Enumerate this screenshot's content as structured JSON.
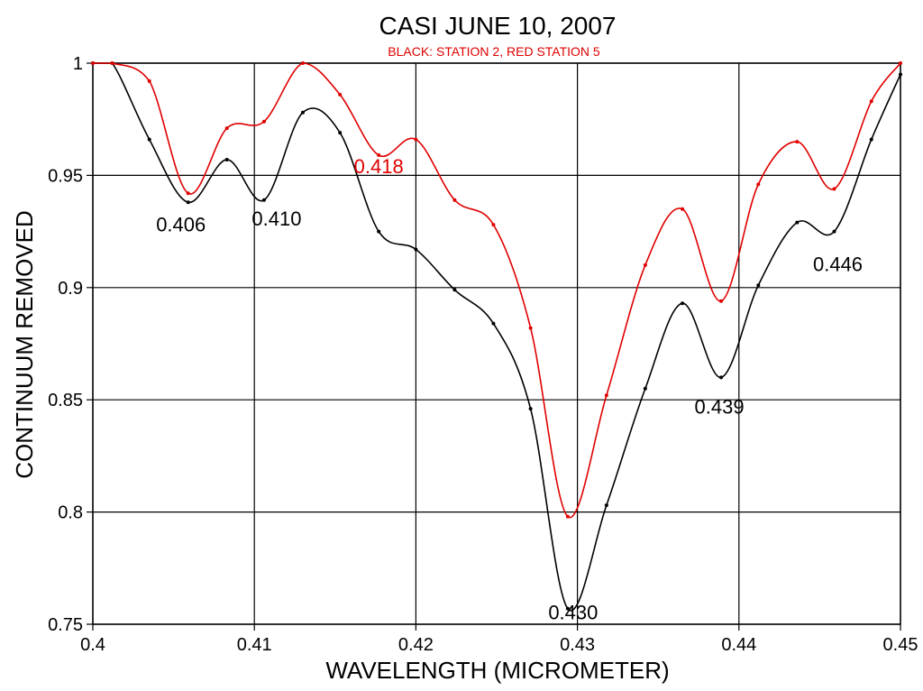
{
  "chart_data": {
    "type": "line",
    "title": "CASI JUNE 10, 2007",
    "subtitle": "BLACK: STATION 2, RED STATION 5",
    "xlabel": "WAVELENGTH (MICROMETER)",
    "ylabel": "CONTINUUM REMOVED",
    "xlim": [
      0.4,
      0.45
    ],
    "ylim": [
      0.75,
      1.0
    ],
    "xticks": [
      0.4,
      0.41,
      0.42,
      0.43,
      0.44,
      0.45
    ],
    "xtick_labels": [
      "0.4",
      "0.41",
      "0.42",
      "0.43",
      "0.44",
      "0.45"
    ],
    "yticks": [
      0.75,
      0.8,
      0.85,
      0.9,
      0.95,
      1.0
    ],
    "ytick_labels": [
      "0.75",
      "0.8",
      "0.85",
      "0.9",
      "0.95",
      "1"
    ],
    "grid": true,
    "series": [
      {
        "color": "#000000",
        "x": [
          0.4,
          0.4012,
          0.4035,
          0.4059,
          0.4083,
          0.4106,
          0.413,
          0.4153,
          0.4177,
          0.42,
          0.4224,
          0.4248,
          0.4271,
          0.4294,
          0.4318,
          0.4342,
          0.4365,
          0.4389,
          0.4412,
          0.4436,
          0.4459,
          0.4482,
          0.45
        ],
        "y": [
          1.0,
          1.0,
          0.966,
          0.938,
          0.957,
          0.939,
          0.978,
          0.969,
          0.925,
          0.917,
          0.899,
          0.884,
          0.846,
          0.757,
          0.803,
          0.855,
          0.893,
          0.86,
          0.901,
          0.929,
          0.925,
          0.966,
          0.995
        ]
      },
      {
        "color": "#e00000",
        "x": [
          0.4,
          0.4012,
          0.4035,
          0.4059,
          0.4083,
          0.4106,
          0.413,
          0.4153,
          0.4177,
          0.42,
          0.4224,
          0.4248,
          0.4271,
          0.4294,
          0.4318,
          0.4342,
          0.4365,
          0.4389,
          0.4412,
          0.4436,
          0.4459,
          0.4482,
          0.45
        ],
        "y": [
          1.0,
          1.0,
          0.992,
          0.942,
          0.971,
          0.974,
          1.0,
          0.986,
          0.959,
          0.966,
          0.939,
          0.928,
          0.882,
          0.798,
          0.852,
          0.91,
          0.935,
          0.894,
          0.946,
          0.965,
          0.944,
          0.983,
          1.0
        ]
      }
    ],
    "annotations": [
      {
        "text": "0.406",
        "color": "#000000",
        "x": 0.4059,
        "y": 0.938
      },
      {
        "text": "0.410",
        "color": "#000000",
        "x": 0.4106,
        "y": 0.939
      },
      {
        "text": "0.418",
        "color": "#e00000",
        "x": 0.4177,
        "y": 0.959
      },
      {
        "text": "0.430",
        "color": "#000000",
        "x": 0.4294,
        "y": 0.757
      },
      {
        "text": "0.439",
        "color": "#000000",
        "x": 0.4389,
        "y": 0.86
      },
      {
        "text": "0.446",
        "color": "#000000",
        "x": 0.4459,
        "y": 0.925
      }
    ]
  }
}
